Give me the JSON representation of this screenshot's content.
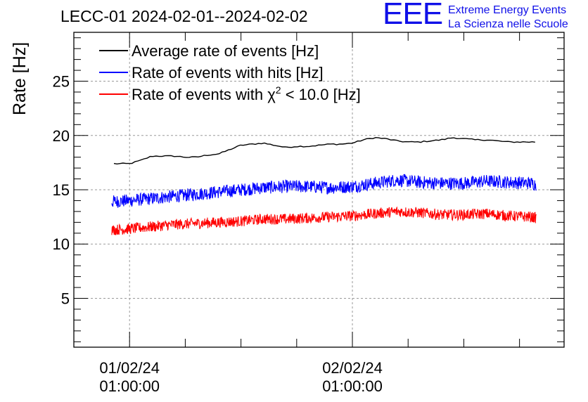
{
  "chart_data": {
    "type": "line",
    "title": "LECC-01 2024-02-01--2024-02-02",
    "ylabel": "Rate [Hz]",
    "xlabel": "",
    "ylim": [
      0.5,
      29.5
    ],
    "xlim": [
      -0.5,
      3.9
    ],
    "y_ticks": [
      5,
      10,
      15,
      20,
      25
    ],
    "x_ticks": [
      {
        "x": 0,
        "label_date": "01/02/24",
        "label_time": "01:00:00"
      },
      {
        "x": 2,
        "label_date": "02/02/24",
        "label_time": "01:00:00"
      }
    ],
    "x_unit_note": "x in units of 12 hours from 01/02/24 01:00:00",
    "grid": true,
    "legend_position": "top-left",
    "legend": [
      {
        "name": "Average rate of events [Hz]",
        "color": "#000000"
      },
      {
        "name": "Rate of events with hits [Hz]",
        "color": "#0000ff"
      },
      {
        "name": "Rate of events with",
        "chi_symbol": "χ",
        "chi_exp": "2",
        "chi_rest": " < 10.0 [Hz]",
        "color": "#ff0000"
      }
    ],
    "series": [
      {
        "name": "Average rate of events [Hz]",
        "color": "#000000",
        "noise": 0,
        "x": [
          -0.14,
          0.0,
          0.1,
          0.2,
          0.3,
          0.4,
          0.5,
          0.6,
          0.7,
          0.8,
          0.9,
          1.0,
          1.1,
          1.2,
          1.3,
          1.4,
          1.5,
          1.6,
          1.7,
          1.8,
          1.9,
          2.0,
          2.1,
          2.2,
          2.3,
          2.4,
          2.5,
          2.6,
          2.7,
          2.8,
          2.9,
          3.0,
          3.1,
          3.2,
          3.3,
          3.4,
          3.5,
          3.6,
          3.64
        ],
        "y": [
          17.4,
          17.4,
          17.7,
          18.1,
          18.1,
          18.1,
          18.0,
          18.0,
          18.2,
          18.3,
          18.7,
          19.1,
          19.2,
          19.3,
          19.1,
          18.9,
          19.0,
          19.0,
          19.1,
          19.2,
          19.2,
          19.3,
          19.6,
          19.8,
          19.7,
          19.5,
          19.4,
          19.4,
          19.5,
          19.6,
          19.8,
          19.7,
          19.6,
          19.6,
          19.5,
          19.4,
          19.4,
          19.4,
          19.4
        ]
      },
      {
        "name": "Rate of events with hits [Hz]",
        "color": "#0000ff",
        "noise": 0.6,
        "x": [
          -0.16,
          0.0,
          0.2,
          0.4,
          0.6,
          0.8,
          1.0,
          1.2,
          1.4,
          1.6,
          1.8,
          2.0,
          2.2,
          2.4,
          2.6,
          2.8,
          3.0,
          3.2,
          3.4,
          3.6,
          3.65
        ],
        "y": [
          13.9,
          14.0,
          14.2,
          14.4,
          14.6,
          14.8,
          15.0,
          15.2,
          15.3,
          15.3,
          15.2,
          15.3,
          15.6,
          15.9,
          15.7,
          15.6,
          15.6,
          15.8,
          15.7,
          15.6,
          15.5
        ]
      },
      {
        "name": "Rate of events with chi2 < 10.0 [Hz]",
        "color": "#ff0000",
        "noise": 0.5,
        "x": [
          -0.16,
          0.0,
          0.2,
          0.4,
          0.6,
          0.8,
          1.0,
          1.2,
          1.4,
          1.6,
          1.8,
          2.0,
          2.2,
          2.4,
          2.6,
          2.8,
          3.0,
          3.2,
          3.4,
          3.6,
          3.65
        ],
        "y": [
          11.3,
          11.4,
          11.6,
          11.8,
          11.9,
          12.0,
          12.1,
          12.3,
          12.3,
          12.4,
          12.5,
          12.6,
          12.8,
          13.0,
          12.9,
          12.7,
          12.7,
          12.8,
          12.6,
          12.5,
          12.4
        ]
      }
    ]
  },
  "logo": {
    "mark": "EEE",
    "line1": "Extreme Energy Events",
    "line2": "La Scienza nelle Scuole"
  }
}
